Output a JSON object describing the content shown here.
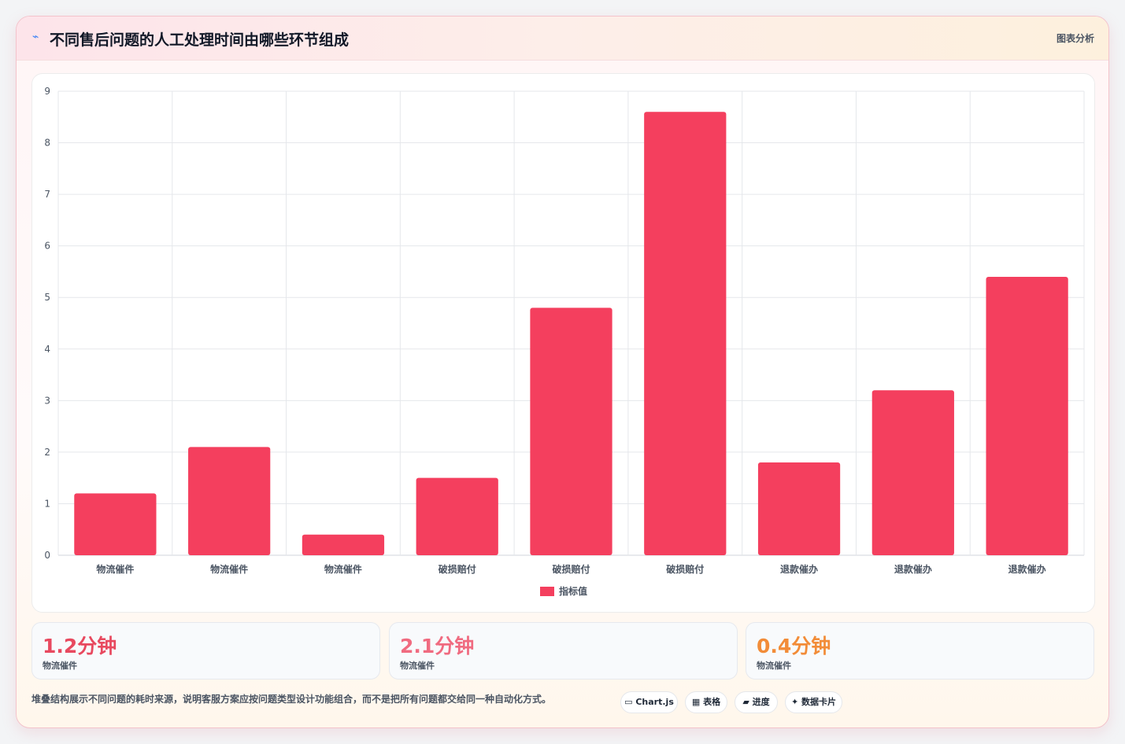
{
  "header": {
    "icon": "chart-icon",
    "title": "不同售后问题的人工处理时间由哪些环节组成",
    "tag": "图表分析"
  },
  "chart_data": {
    "type": "bar",
    "categories": [
      "物流催件",
      "物流催件",
      "物流催件",
      "破损赔付",
      "破损赔付",
      "破损赔付",
      "退款催办",
      "退款催办",
      "退款催办"
    ],
    "series": [
      {
        "name": "指标值",
        "values": [
          1.2,
          2.1,
          0.4,
          1.5,
          4.8,
          8.6,
          1.8,
          3.2,
          5.4
        ],
        "color": "#f43f5e"
      }
    ],
    "ylim": [
      0,
      9
    ],
    "yticks": [
      0,
      1,
      2,
      3,
      4,
      5,
      6,
      7,
      8,
      9
    ],
    "grid": true,
    "legend": "bottom"
  },
  "stats": [
    {
      "value": "1.2分钟",
      "label": "物流催件",
      "color": "#e8495f"
    },
    {
      "value": "2.1分钟",
      "label": "物流催件",
      "color": "#f06b80"
    },
    {
      "value": "0.4分钟",
      "label": "物流催件",
      "color": "#f28c38"
    }
  ],
  "footnote": "堆叠结构展示不同问题的耗时来源，说明客服方案应按问题类型设计功能组合，而不是把所有问题都交给同一种自动化方式。",
  "chips": [
    {
      "icon": "window-icon",
      "glyph": "▭",
      "label": "Chart.js"
    },
    {
      "icon": "table-icon",
      "glyph": "▦",
      "label": "表格"
    },
    {
      "icon": "progress-icon",
      "glyph": "▰",
      "label": "进度"
    },
    {
      "icon": "sparkle-icon",
      "glyph": "✦",
      "label": "数据卡片"
    }
  ]
}
